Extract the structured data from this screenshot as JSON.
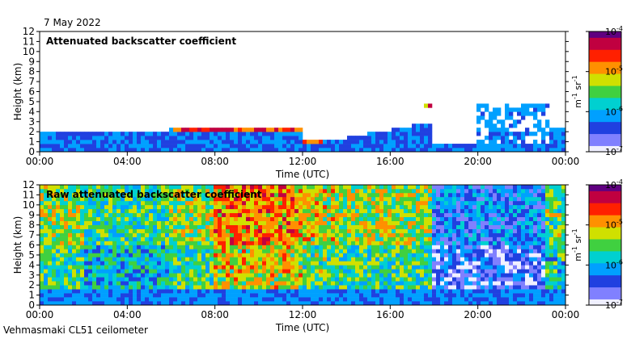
{
  "date": "7 May 2022",
  "instrument": "Vehmasmaki CL51 ceilometer",
  "colors": {
    "background": "#ffffff",
    "axis": "#000000",
    "scale": [
      "#f0f0ff",
      "#8080ff",
      "#2040e0",
      "#00a0ff",
      "#00d0d0",
      "#40d040",
      "#d0e000",
      "#ff9000",
      "#ff2000",
      "#c00040",
      "#600080"
    ]
  },
  "chart_data": [
    {
      "type": "heatmap",
      "title": "Attenuated backscatter coefficient",
      "xlabel": "Time (UTC)",
      "ylabel": "Height (km)",
      "x_ticks": [
        "00:00",
        "04:00",
        "08:00",
        "12:00",
        "16:00",
        "20:00",
        "00:00"
      ],
      "y_ticks": [
        "0",
        "1",
        "2",
        "3",
        "4",
        "5",
        "6",
        "7",
        "8",
        "9",
        "10",
        "11",
        "12"
      ],
      "xlim_hours": [
        0,
        24
      ],
      "ylim_km": [
        0,
        12
      ],
      "colorbar": {
        "unit_base": "m",
        "unit_exp": "-1",
        "unit_base2": "sr",
        "unit_exp2": "-1",
        "ticks": [
          {
            "base": "10",
            "exp": "-4",
            "log": -4
          },
          {
            "base": "10",
            "exp": "-5",
            "log": -5
          },
          {
            "base": "10",
            "exp": "-6",
            "log": -6
          },
          {
            "base": "10",
            "exp": "-7",
            "log": -7
          }
        ],
        "scale": "log",
        "range_log": [
          -7,
          -4
        ]
      }
    },
    {
      "type": "heatmap",
      "title": "Raw attenuated backscatter coefficient",
      "xlabel": "Time (UTC)",
      "ylabel": "Height (km)",
      "x_ticks": [
        "00:00",
        "04:00",
        "08:00",
        "12:00",
        "16:00",
        "20:00",
        "00:00"
      ],
      "y_ticks": [
        "0",
        "1",
        "2",
        "3",
        "4",
        "5",
        "6",
        "7",
        "8",
        "9",
        "10",
        "11",
        "12"
      ],
      "xlim_hours": [
        0,
        24
      ],
      "ylim_km": [
        0,
        12
      ],
      "colorbar": {
        "unit_base": "m",
        "unit_exp": "-1",
        "unit_base2": "sr",
        "unit_exp2": "-1",
        "ticks": [
          {
            "base": "10",
            "exp": "-4",
            "log": -4
          },
          {
            "base": "10",
            "exp": "-5",
            "log": -5
          },
          {
            "base": "10",
            "exp": "-6",
            "log": -6
          },
          {
            "base": "10",
            "exp": "-7",
            "log": -7
          }
        ],
        "scale": "log",
        "range_log": [
          -7,
          -4
        ]
      }
    }
  ]
}
